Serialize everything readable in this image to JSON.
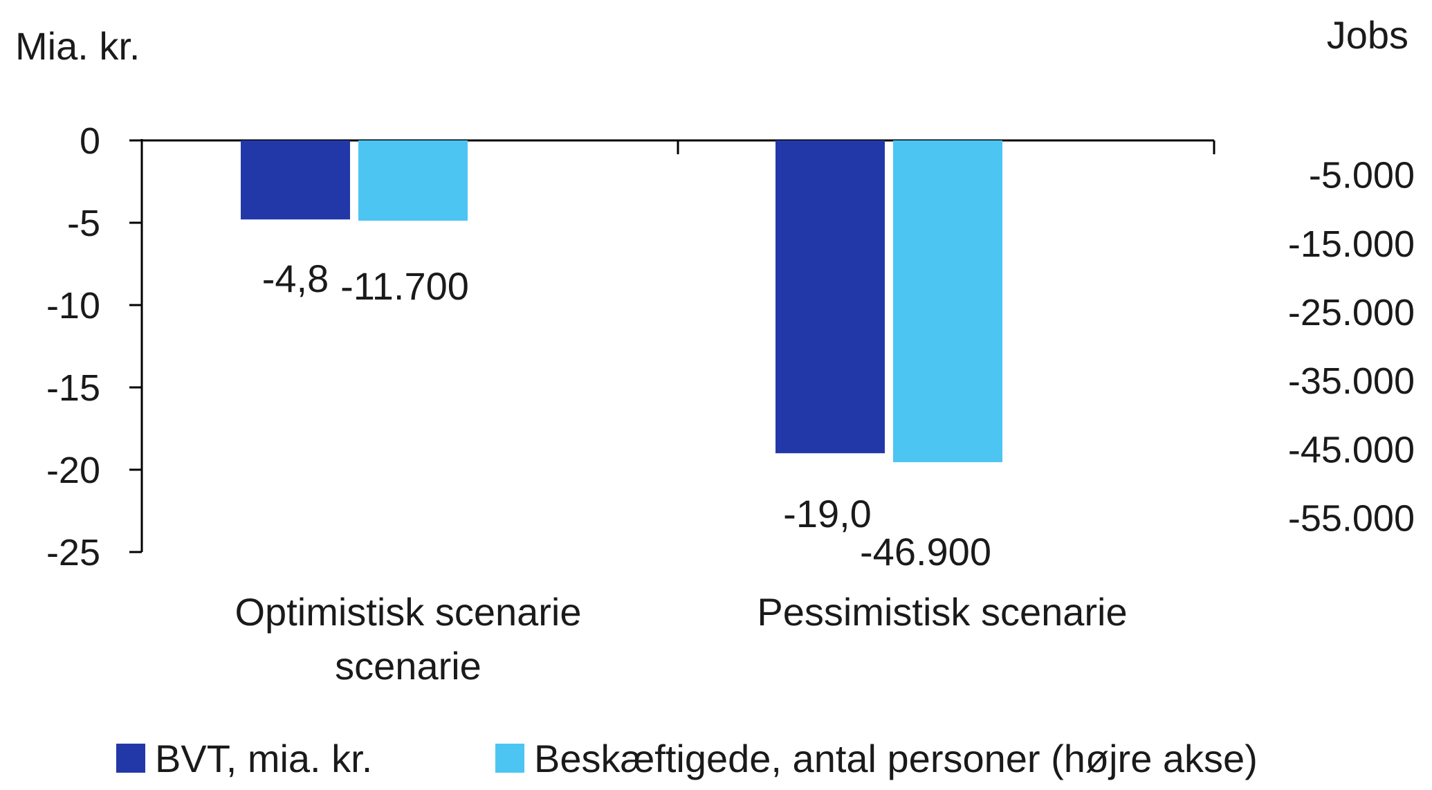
{
  "chart_data": {
    "type": "bar",
    "title": "",
    "ylabel_left": "Mia. kr.",
    "ylabel_right": "Jobs",
    "categories": [
      "Optimistisk scenarie",
      "Pessimistisk scenarie"
    ],
    "category_label_lines": [
      [
        "Optimistisk scenarie",
        "scenarie"
      ],
      [
        "Pessimistisk scenarie"
      ]
    ],
    "series": [
      {
        "name": "BVT, mia. kr.",
        "axis": "left",
        "color": "#2338a8",
        "values": [
          -4.8,
          -19.0
        ],
        "labels": [
          "-4,8",
          "-19,0"
        ]
      },
      {
        "name": "Beskæftigede, antal personer (højre akse)",
        "axis": "right",
        "color": "#4cc5f2",
        "values": [
          -11700,
          -46900
        ],
        "labels": [
          "-11.700",
          "-46.900"
        ]
      }
    ],
    "left_axis": {
      "ylim": [
        -25,
        0
      ],
      "ticks": [
        0,
        -5,
        -10,
        -15,
        -20,
        -25
      ],
      "tick_labels": [
        "0",
        "-5",
        "-10",
        "-15",
        "-20",
        "-25"
      ]
    },
    "right_axis": {
      "ylim": [
        -60000,
        0
      ],
      "ticks": [
        -5000,
        -15000,
        -25000,
        -35000,
        -45000,
        -55000
      ],
      "tick_labels": [
        "-5.000",
        "-15.000",
        "-25.000",
        "-35.000",
        "-45.000",
        "-55.000"
      ]
    },
    "grid": false,
    "legend_position": "bottom"
  }
}
